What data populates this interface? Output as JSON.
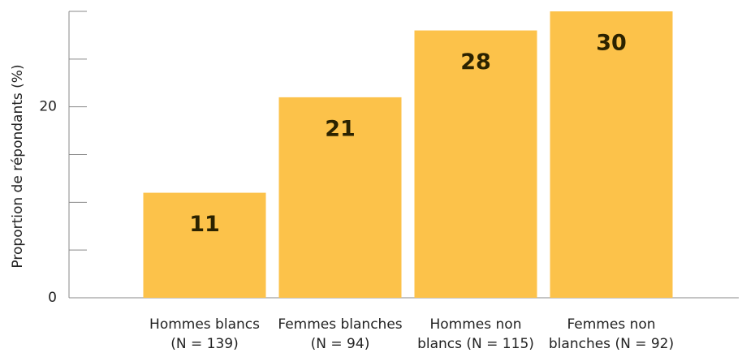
{
  "chart_data": {
    "type": "bar",
    "y_label": "Proportion de répondants (%)",
    "categories": [
      [
        "Hommes blancs",
        "(N = 139)"
      ],
      [
        "Femmes blanches",
        "(N = 94)"
      ],
      [
        "Hommes non",
        "blancs (N = 115)"
      ],
      [
        "Femmes non",
        "blanches (N = 92)"
      ]
    ],
    "values": [
      11,
      21,
      28,
      30
    ],
    "color": "#fcc24a",
    "ylim": [
      0,
      30
    ],
    "yticks": [
      0,
      20
    ],
    "minor_yticks": [
      5,
      10,
      15,
      25,
      30
    ]
  }
}
